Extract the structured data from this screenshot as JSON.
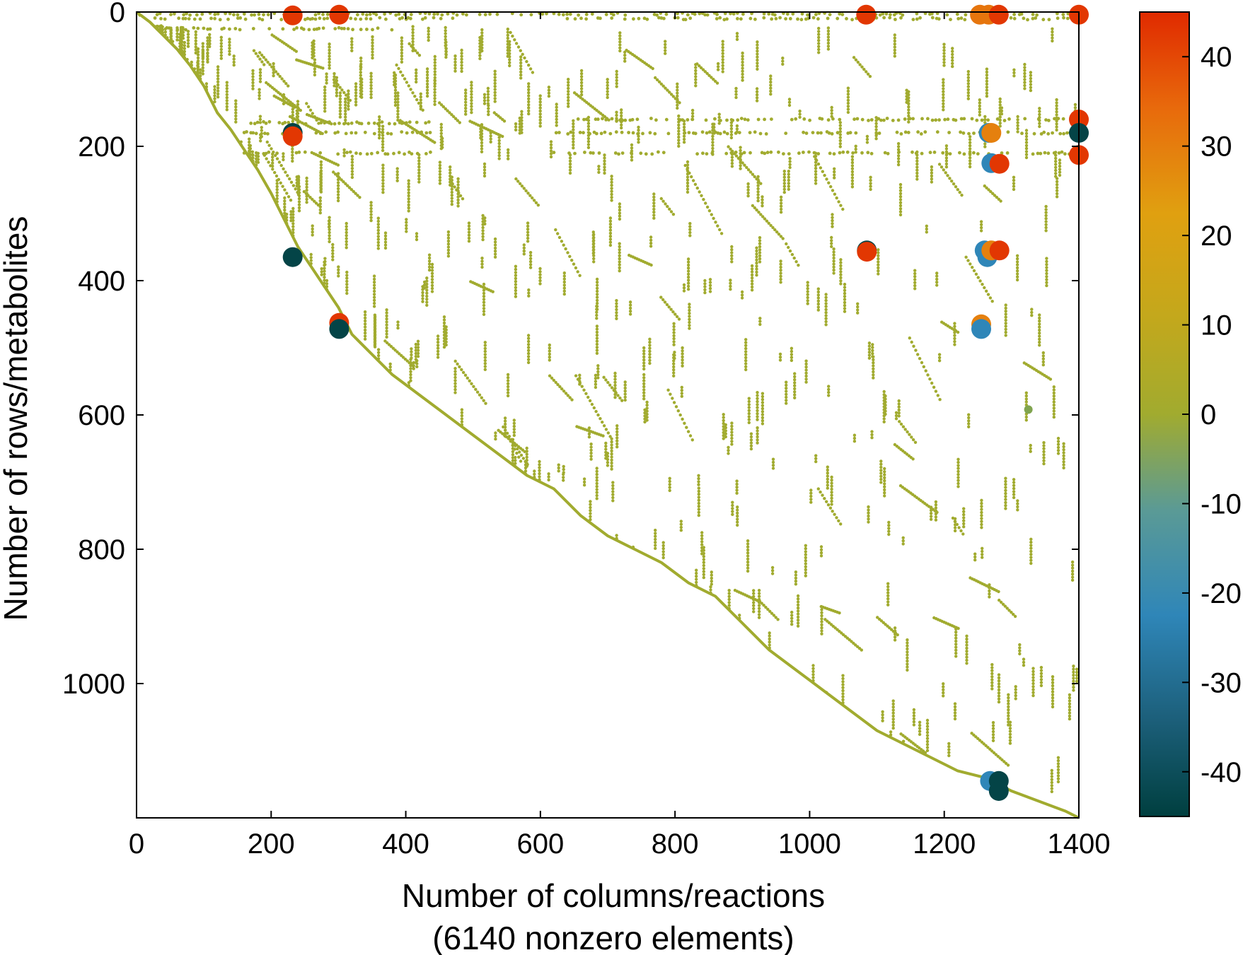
{
  "chart_data": {
    "type": "scatter",
    "description_sparsity": "spy plot of a stoichiometric matrix",
    "xlabel": "Number of columns/reactions",
    "xlabel_line2": "(6140 nonzero elements)",
    "ylabel": "Number of rows/metabolites",
    "xlim": [
      0,
      1400
    ],
    "ylim": [
      1200,
      0
    ],
    "x_ticks": [
      0,
      200,
      400,
      600,
      800,
      1000,
      1200,
      1400
    ],
    "x_tick_labels": [
      "0",
      "200",
      "400",
      "600",
      "800",
      "1000",
      "1200",
      "1400"
    ],
    "y_ticks": [
      0,
      200,
      400,
      600,
      800,
      1000
    ],
    "y_tick_labels": [
      "0",
      "200",
      "400",
      "600",
      "800",
      "1000"
    ],
    "colorbar": {
      "range": [
        -45,
        45
      ],
      "ticks": [
        40,
        30,
        20,
        10,
        0,
        -10,
        -20,
        -30,
        -40
      ],
      "tick_labels": [
        "40",
        "30",
        "20",
        "10",
        "0",
        "-10",
        "-20",
        "-30",
        "-40"
      ],
      "colors": [
        "#003f3f",
        "#1c5f7a",
        "#2f86b8",
        "#3a8fc4",
        "#7aa064",
        "#a1ab2f",
        "#d4a019",
        "#e98d10",
        "#e85a0c",
        "#e02a00"
      ]
    },
    "grid": false,
    "diagonal_path": [
      [
        0,
        0
      ],
      [
        20,
        15
      ],
      [
        40,
        35
      ],
      [
        60,
        55
      ],
      [
        80,
        80
      ],
      [
        100,
        110
      ],
      [
        120,
        150
      ],
      [
        140,
        175
      ],
      [
        160,
        205
      ],
      [
        180,
        235
      ],
      [
        200,
        270
      ],
      [
        220,
        310
      ],
      [
        240,
        350
      ],
      [
        260,
        380
      ],
      [
        280,
        410
      ],
      [
        300,
        440
      ],
      [
        320,
        480
      ],
      [
        350,
        510
      ],
      [
        380,
        540
      ],
      [
        420,
        570
      ],
      [
        460,
        600
      ],
      [
        500,
        630
      ],
      [
        540,
        660
      ],
      [
        580,
        690
      ],
      [
        620,
        710
      ],
      [
        660,
        750
      ],
      [
        700,
        780
      ],
      [
        740,
        800
      ],
      [
        780,
        820
      ],
      [
        820,
        850
      ],
      [
        860,
        870
      ],
      [
        900,
        910
      ],
      [
        940,
        950
      ],
      [
        980,
        980
      ],
      [
        1020,
        1010
      ],
      [
        1060,
        1040
      ],
      [
        1100,
        1070
      ],
      [
        1140,
        1090
      ],
      [
        1180,
        1110
      ],
      [
        1220,
        1130
      ],
      [
        1260,
        1140
      ],
      [
        1300,
        1160
      ],
      [
        1340,
        1175
      ],
      [
        1380,
        1190
      ],
      [
        1400,
        1200
      ]
    ],
    "dense_rows": [
      {
        "row": 3,
        "from": 0,
        "to": 1400
      },
      {
        "row": 10,
        "from": 20,
        "to": 470
      },
      {
        "row": 10,
        "from": 640,
        "to": 1400
      },
      {
        "row": 25,
        "from": 30,
        "to": 380
      },
      {
        "row": 160,
        "from": 640,
        "to": 1400
      },
      {
        "row": 165,
        "from": 170,
        "to": 440
      },
      {
        "row": 180,
        "from": 160,
        "to": 440
      },
      {
        "row": 180,
        "from": 620,
        "to": 1400
      },
      {
        "row": 210,
        "from": 160,
        "to": 440
      },
      {
        "row": 210,
        "from": 620,
        "to": 1400
      }
    ],
    "highlighted_points": [
      {
        "x": 232,
        "y": 5,
        "value": 42
      },
      {
        "x": 301,
        "y": 4,
        "value": 42
      },
      {
        "x": 1084,
        "y": 4,
        "value": 42
      },
      {
        "x": 1253,
        "y": 4,
        "value": 28
      },
      {
        "x": 1266,
        "y": 4,
        "value": 28
      },
      {
        "x": 1281,
        "y": 4,
        "value": 42
      },
      {
        "x": 1400,
        "y": 4,
        "value": 42
      },
      {
        "x": 232,
        "y": 180,
        "value": -43
      },
      {
        "x": 232,
        "y": 185,
        "value": 42
      },
      {
        "x": 1266,
        "y": 180,
        "value": -20
      },
      {
        "x": 1270,
        "y": 180,
        "value": 26
      },
      {
        "x": 1400,
        "y": 160,
        "value": 42
      },
      {
        "x": 1400,
        "y": 180,
        "value": -43
      },
      {
        "x": 1400,
        "y": 213,
        "value": 42
      },
      {
        "x": 1270,
        "y": 225,
        "value": -20
      },
      {
        "x": 1282,
        "y": 226,
        "value": 42
      },
      {
        "x": 232,
        "y": 365,
        "value": -43
      },
      {
        "x": 1085,
        "y": 355,
        "value": -43
      },
      {
        "x": 1085,
        "y": 357,
        "value": 42
      },
      {
        "x": 1260,
        "y": 355,
        "value": -20
      },
      {
        "x": 1264,
        "y": 365,
        "value": -20
      },
      {
        "x": 1270,
        "y": 355,
        "value": 26
      },
      {
        "x": 1282,
        "y": 355,
        "value": 42
      },
      {
        "x": 301,
        "y": 463,
        "value": 42
      },
      {
        "x": 301,
        "y": 472,
        "value": -43
      },
      {
        "x": 1255,
        "y": 465,
        "value": 26
      },
      {
        "x": 1255,
        "y": 472,
        "value": -20
      },
      {
        "x": 1325,
        "y": 592,
        "value": -6
      },
      {
        "x": 1268,
        "y": 1145,
        "value": -20
      },
      {
        "x": 1281,
        "y": 1145,
        "value": -43
      },
      {
        "x": 1281,
        "y": 1160,
        "value": -43
      }
    ]
  }
}
